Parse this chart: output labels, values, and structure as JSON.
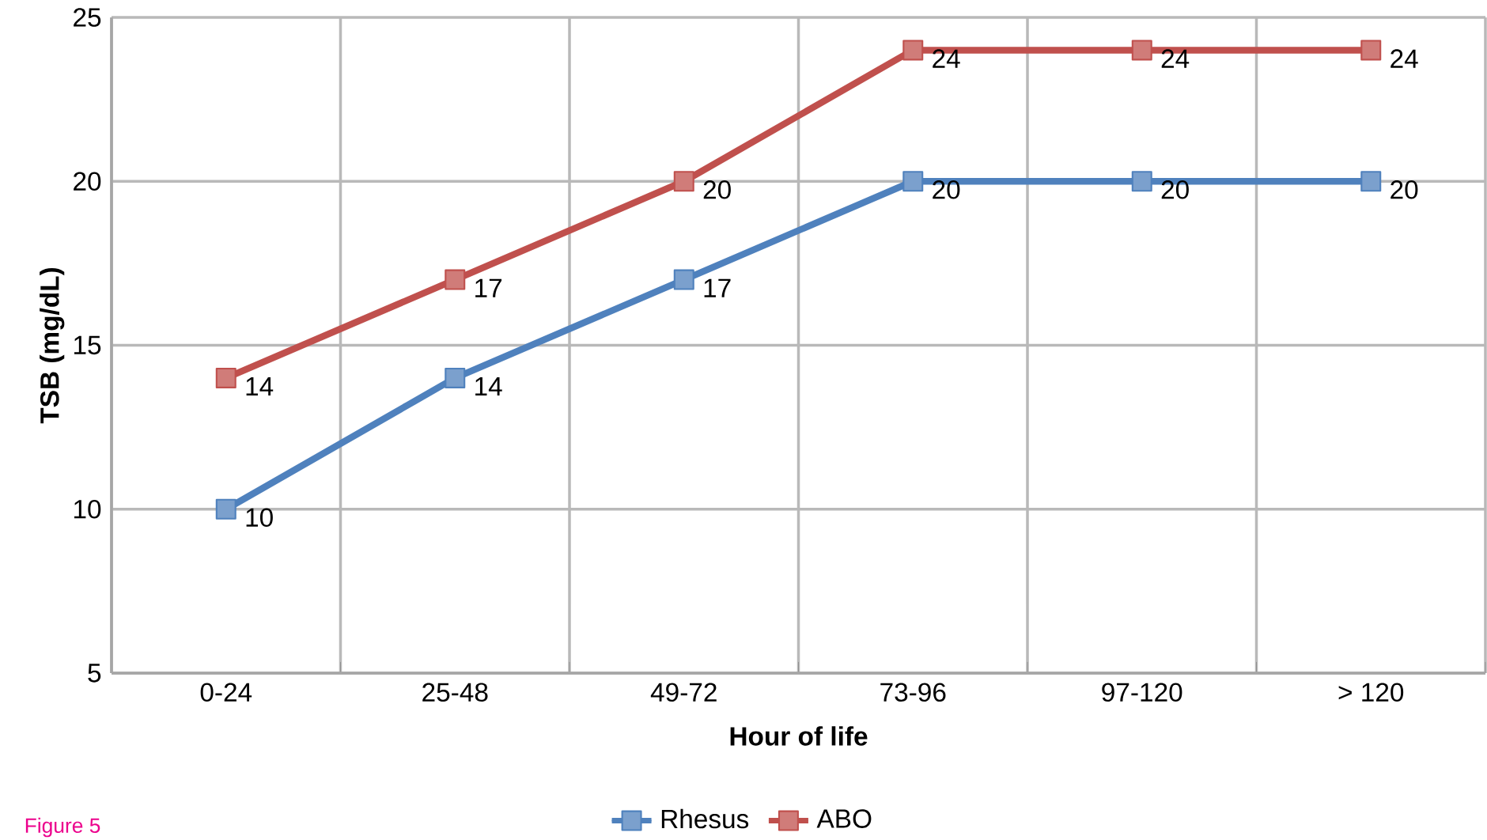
{
  "chart_data": {
    "type": "line",
    "xlabel": "Hour of life",
    "ylabel": "TSB (mg/dL)",
    "categories": [
      "0-24",
      "25-48",
      "49-72",
      "73-96",
      "97-120",
      "> 120"
    ],
    "series": [
      {
        "name": "Rhesus",
        "color": "#4f81bd",
        "values": [
          10,
          14,
          17,
          20,
          20,
          20
        ]
      },
      {
        "name": "ABO",
        "color": "#c0504d",
        "values": [
          14,
          17,
          20,
          24,
          24,
          24
        ]
      }
    ],
    "ylim": [
      5,
      25
    ],
    "yticks": [
      5,
      10,
      15,
      20,
      25
    ],
    "grid": true,
    "legend": "bottom",
    "marker": "square",
    "data_labels": true,
    "annotations": [
      "Figure 5"
    ]
  }
}
